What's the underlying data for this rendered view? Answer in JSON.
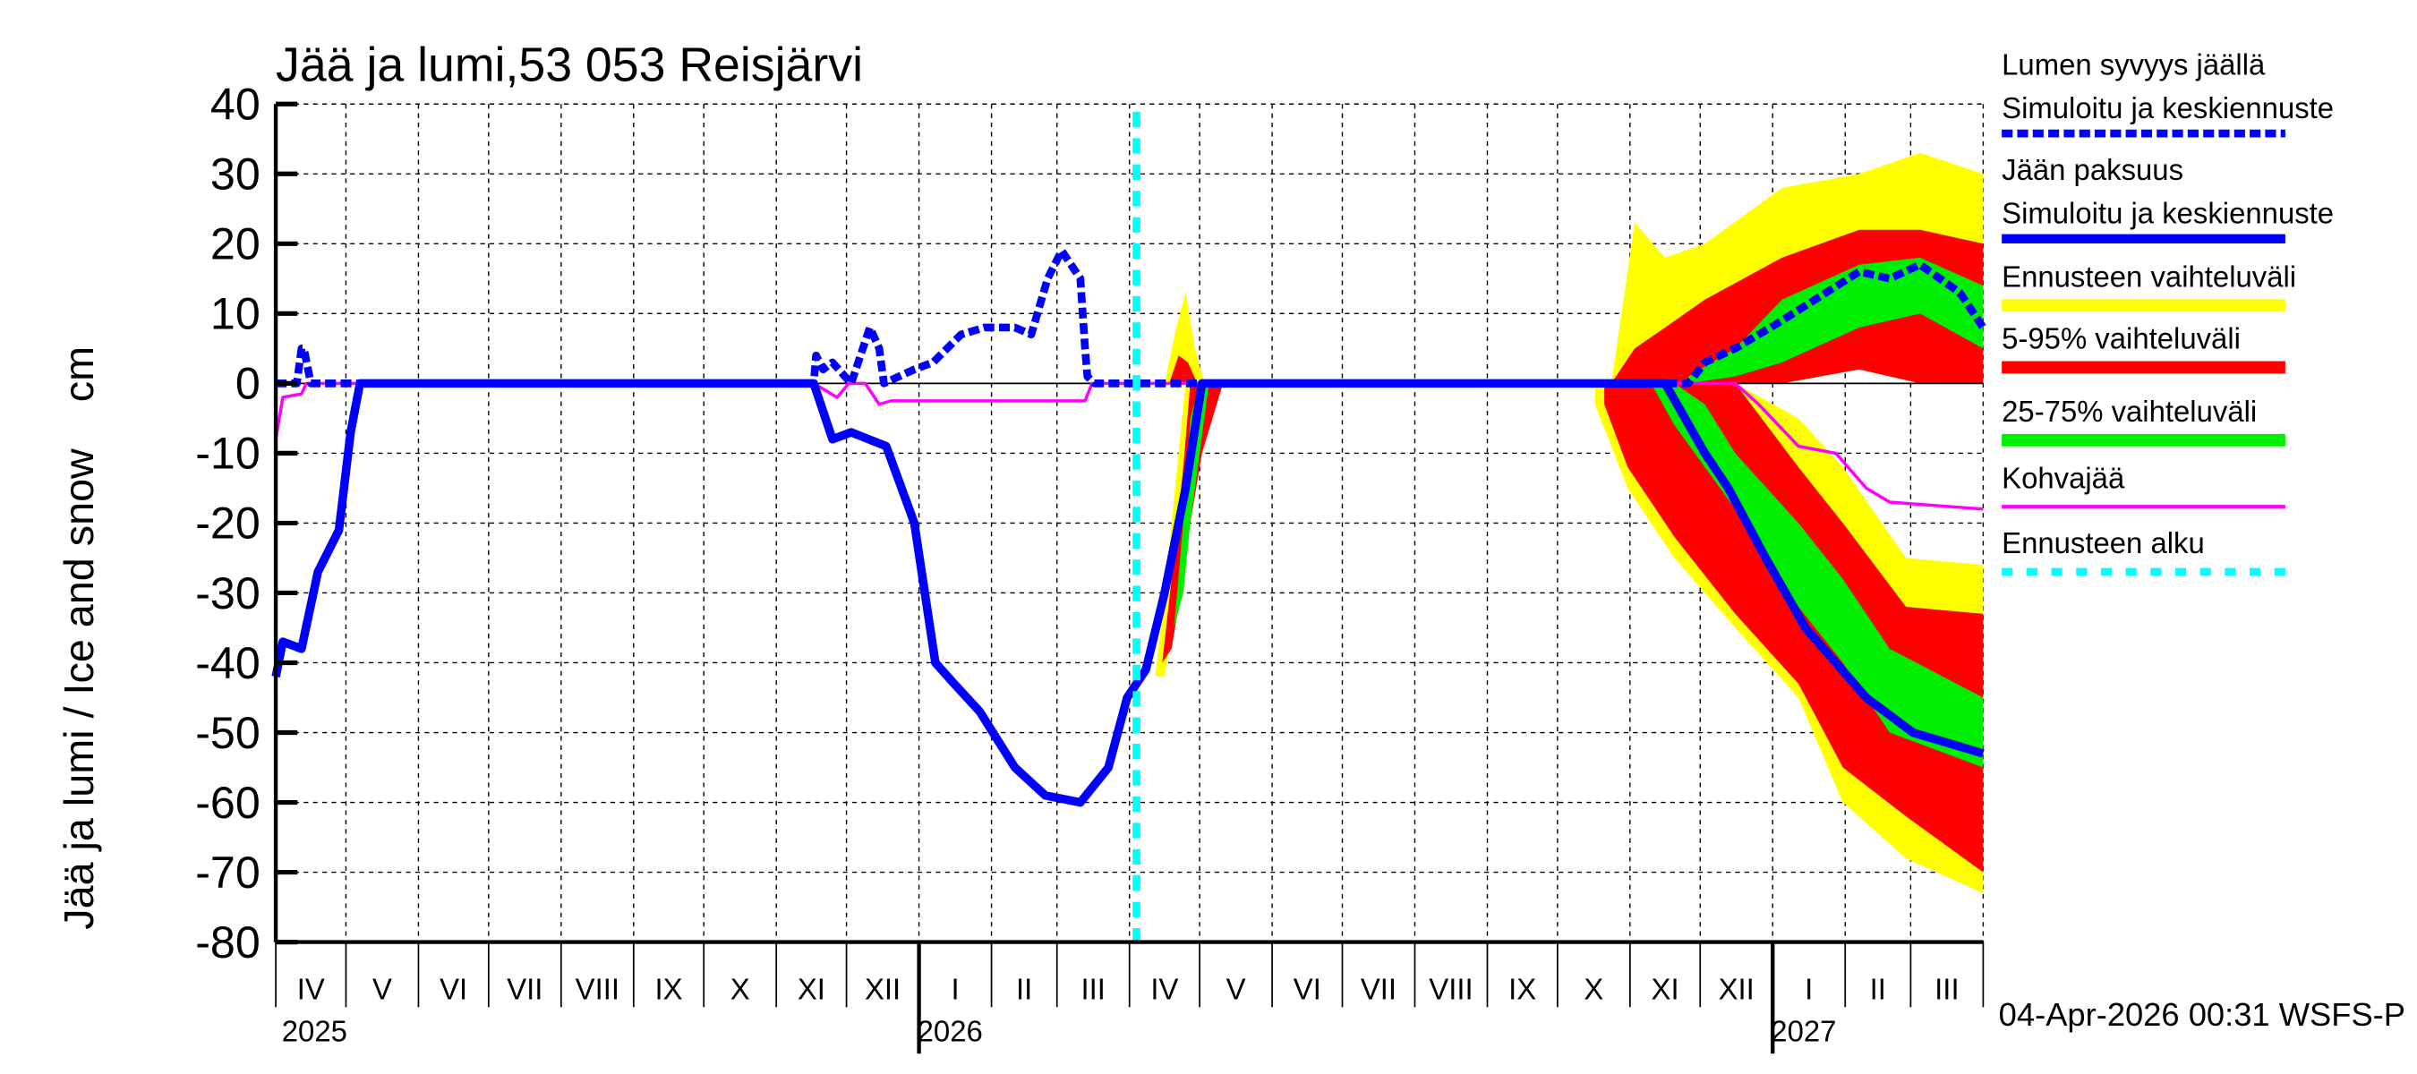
{
  "chart_data": {
    "type": "line",
    "title": "Jää ja lumi,53 053 Reisjärvi",
    "ylabel": "Jää ja lumi / Ice and snow    cm",
    "xlabel": "",
    "x_units": "days since 2025-04-01",
    "xlim": [
      0,
      730
    ],
    "ylim": [
      -80,
      40
    ],
    "yticks": [
      40,
      30,
      20,
      10,
      0,
      -10,
      -20,
      -30,
      -40,
      -50,
      -60,
      -70,
      -80
    ],
    "grid": true,
    "month_labels": [
      "IV",
      "V",
      "VI",
      "VII",
      "VIII",
      "IX",
      "X",
      "XI",
      "XII",
      "I",
      "II",
      "III",
      "IV",
      "V",
      "VI",
      "VII",
      "VIII",
      "IX",
      "X",
      "XI",
      "XII",
      "I",
      "II",
      "III"
    ],
    "month_lengths": [
      30,
      31,
      30,
      31,
      31,
      30,
      31,
      30,
      31,
      31,
      28,
      31,
      30,
      31,
      30,
      31,
      31,
      30,
      31,
      30,
      31,
      31,
      28,
      31
    ],
    "year_labels": [
      {
        "label": "2025",
        "month_index": 0
      },
      {
        "label": "2026",
        "month_index": 9
      },
      {
        "label": "2027",
        "month_index": 21
      }
    ],
    "forecast_start_day": 368,
    "timestamp": "04-Apr-2026 00:31 WSFS-P",
    "legend_position": "right",
    "legend": [
      {
        "label1": "Lumen syvyys jäällä",
        "label2": "Simuloitu ja keskiennuste",
        "color": "#0000ff",
        "style": "dashed"
      },
      {
        "label1": "Jään paksuus",
        "label2": "Simuloitu ja keskiennuste",
        "color": "#0000ff",
        "style": "solid"
      },
      {
        "label1": "Ennusteen vaihteluväli",
        "color": "#ffff00",
        "style": "band"
      },
      {
        "label1": "5-95% vaihteluväli",
        "color": "#ff0000",
        "style": "band"
      },
      {
        "label1": "25-75% vaihteluväli",
        "color": "#00ee00",
        "style": "band"
      },
      {
        "label1": "Kohvajää",
        "color": "#ff00ff",
        "style": "thin"
      },
      {
        "label1": "Ennusteen alku",
        "color": "#00ffff",
        "style": "dotted"
      }
    ],
    "bands": [
      {
        "name": "ice-range-yellow-spring",
        "color": "#ffff00",
        "x": [
          376,
          380,
          386,
          389,
          393,
          397,
          405
        ],
        "hi": [
          -42,
          -30,
          -10,
          0,
          0,
          0,
          0
        ],
        "lo": [
          -42,
          -42,
          -30,
          -20,
          -10,
          -5,
          0
        ]
      },
      {
        "name": "ice-range-red-spring",
        "color": "#ff0000",
        "x": [
          379,
          383,
          388,
          391,
          396,
          405
        ],
        "hi": [
          -40,
          -28,
          -12,
          0,
          0,
          0
        ],
        "lo": [
          -40,
          -38,
          -28,
          -20,
          -10,
          0
        ]
      },
      {
        "name": "ice-range-green-spring",
        "color": "#00ee00",
        "x": [
          384,
          388,
          391,
          395,
          399
        ],
        "hi": [
          -35,
          -20,
          -5,
          0,
          0
        ],
        "lo": [
          -35,
          -30,
          -20,
          -10,
          0
        ]
      },
      {
        "name": "snow-range-yellow-spring",
        "color": "#ffff00",
        "x": [
          380,
          385,
          389,
          393,
          397
        ],
        "hi": [
          0,
          8,
          13,
          5,
          0
        ],
        "lo": [
          0,
          0,
          0,
          0,
          0
        ]
      },
      {
        "name": "snow-range-red-spring",
        "color": "#ff0000",
        "x": [
          382,
          386,
          390,
          394
        ],
        "hi": [
          0,
          4,
          3,
          0
        ],
        "lo": [
          0,
          0,
          0,
          0
        ]
      },
      {
        "name": "snow-range-yellow",
        "color": "#ffff00",
        "x": [
          571,
          581,
          594,
          611,
          644,
          677,
          703,
          730
        ],
        "hi": [
          0,
          23,
          18,
          20,
          28,
          30,
          33,
          30
        ],
        "lo": [
          0,
          0,
          0,
          0,
          0,
          2,
          0,
          0
        ]
      },
      {
        "name": "snow-range-red",
        "color": "#ff0000",
        "x": [
          571,
          581,
          594,
          611,
          644,
          677,
          703,
          730
        ],
        "hi": [
          0,
          5,
          8,
          12,
          18,
          22,
          22,
          20
        ],
        "lo": [
          0,
          0,
          0,
          0,
          0,
          2,
          0,
          0
        ]
      },
      {
        "name": "snow-range-green",
        "color": "#00ee00",
        "x": [
          604,
          624,
          644,
          677,
          703,
          730
        ],
        "hi": [
          1,
          5,
          12,
          17,
          18,
          14
        ],
        "lo": [
          0,
          1,
          3,
          8,
          10,
          5
        ]
      },
      {
        "name": "ice-range-yellow",
        "color": "#ffff00",
        "x": [
          564,
          578,
          598,
          624,
          651,
          670,
          697,
          730
        ],
        "hi": [
          0,
          0,
          0,
          0,
          -5,
          -12,
          -25,
          -26
        ],
        "lo": [
          -3,
          -15,
          -25,
          -35,
          -45,
          -60,
          -68,
          -73
        ]
      },
      {
        "name": "ice-range-red",
        "color": "#ff0000",
        "x": [
          568,
          578,
          598,
          624,
          651,
          670,
          697,
          730
        ],
        "hi": [
          0,
          0,
          0,
          0,
          -12,
          -20,
          -32,
          -33
        ],
        "lo": [
          -3,
          -12,
          -22,
          -33,
          -43,
          -55,
          -62,
          -70
        ]
      },
      {
        "name": "ice-range-green",
        "color": "#00ee00",
        "x": [
          588,
          598,
          611,
          624,
          651,
          670,
          690,
          730
        ],
        "hi": [
          0,
          0,
          -3,
          -10,
          -20,
          -28,
          -38,
          -45
        ],
        "lo": [
          0,
          -6,
          -12,
          -18,
          -32,
          -40,
          -50,
          -55
        ]
      }
    ],
    "series": [
      {
        "name": "Kohvajää",
        "color": "#ff00ff",
        "style": "thin",
        "x": [
          0,
          3,
          11,
          13,
          15,
          230,
          240,
          245,
          252,
          258,
          263,
          346,
          349,
          624,
          634,
          651,
          667,
          680,
          690,
          730
        ],
        "y": [
          -8,
          -2,
          -1.5,
          0,
          0,
          0,
          -2,
          0,
          0,
          -3,
          -2.5,
          -2.5,
          0,
          0,
          -3,
          -9,
          -10,
          -15,
          -17,
          -18
        ]
      },
      {
        "name": "Lumen syvyys jäällä",
        "color": "#0000ff",
        "style": "dashed",
        "x": [
          0,
          9,
          11,
          12,
          15,
          230,
          231,
          234,
          238,
          246,
          252,
          254,
          258,
          260,
          273,
          281,
          293,
          303,
          316,
          323,
          330,
          333,
          336,
          344,
          346,
          347,
          350,
          604,
          611,
          624,
          644,
          677,
          690,
          703,
          720,
          730
        ],
        "y": [
          0,
          0,
          5,
          5,
          0,
          0,
          4,
          2,
          3,
          0,
          6,
          8,
          5,
          0,
          2,
          3,
          7,
          8,
          8,
          7,
          15,
          17,
          19,
          15,
          5,
          1,
          0,
          0,
          3,
          5,
          9,
          16,
          15,
          17,
          13,
          8
        ]
      },
      {
        "name": "Jään paksuus",
        "color": "#0000ff",
        "style": "solid",
        "x": [
          0,
          3,
          11,
          18,
          27,
          32,
          36,
          230,
          238,
          246,
          261,
          273,
          282,
          290,
          301,
          316,
          329,
          344,
          356,
          364,
          372,
          380,
          389,
          396,
          594,
          611,
          621,
          637,
          654,
          680,
          700,
          730
        ],
        "y": [
          -42,
          -37,
          -38,
          -27,
          -21,
          -7,
          0,
          0,
          -8,
          -7,
          -9,
          -20,
          -40,
          -43,
          -47,
          -55,
          -59,
          -60,
          -55,
          -45,
          -41,
          -30,
          -15,
          0,
          0,
          -10,
          -15,
          -25,
          -35,
          -45,
          -50,
          -53
        ]
      }
    ]
  }
}
